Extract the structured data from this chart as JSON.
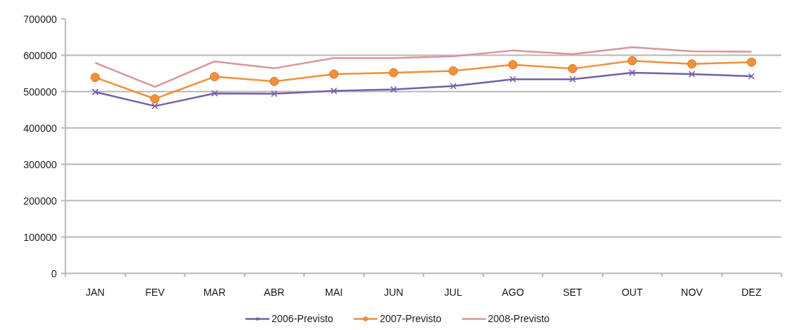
{
  "chart_data": {
    "type": "line",
    "categories": [
      "JAN",
      "FEV",
      "MAR",
      "ABR",
      "MAI",
      "JUN",
      "JUL",
      "AGO",
      "SET",
      "OUT",
      "NOV",
      "DEZ"
    ],
    "series": [
      {
        "name": "2006-Previsto",
        "color": "#7760a9",
        "marker": "cross",
        "values": [
          499000,
          460000,
          495000,
          494000,
          502000,
          506000,
          515000,
          534000,
          534000,
          552000,
          548000,
          542000
        ]
      },
      {
        "name": "2007-Previsto",
        "color": "#f0913a",
        "marker": "circle",
        "values": [
          539000,
          480000,
          541000,
          528000,
          548000,
          552000,
          557000,
          574000,
          563000,
          585000,
          576000,
          581000
        ]
      },
      {
        "name": "2008-Previsto",
        "color": "#d9969b",
        "marker": "none",
        "values": [
          579000,
          513000,
          583000,
          564000,
          592000,
          592000,
          597000,
          613000,
          603000,
          622000,
          611000,
          610000
        ]
      }
    ],
    "ylim": [
      0,
      700000
    ],
    "yticks": [
      0,
      100000,
      200000,
      300000,
      400000,
      500000,
      600000,
      700000
    ],
    "grid": "y",
    "legend": "bottom"
  }
}
